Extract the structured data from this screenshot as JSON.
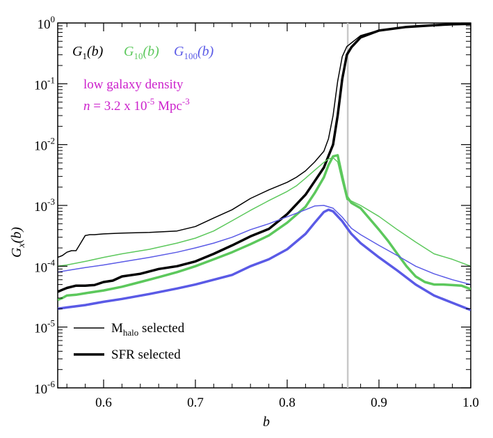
{
  "chart_data": {
    "type": "line",
    "xlabel_main": "b",
    "ylabel_main": "G",
    "ylabel_sub": "x",
    "ylabel_tail": "(b)",
    "xlim": [
      0.55,
      1.0
    ],
    "ylim": [
      1e-06,
      1
    ],
    "yscale": "log",
    "xticks": [
      "0.6",
      "0.7",
      "0.8",
      "0.9",
      "1.0"
    ],
    "yticks": [
      {
        "base": "10",
        "exp": "0",
        "value": 1
      },
      {
        "base": "10",
        "exp": "-1",
        "value": 0.1
      },
      {
        "base": "10",
        "exp": "-2",
        "value": 0.01
      },
      {
        "base": "10",
        "exp": "-3",
        "value": 0.001
      },
      {
        "base": "10",
        "exp": "-4",
        "value": 0.0001
      },
      {
        "base": "10",
        "exp": "-5",
        "value": 1e-05
      },
      {
        "base": "10",
        "exp": "-6",
        "value": 1e-06
      }
    ],
    "vline": {
      "x": 0.866,
      "color": "#c8c8c8"
    },
    "legend_top": [
      {
        "g": "G",
        "sub": "1",
        "arg": "(b)",
        "color": "#000000"
      },
      {
        "g": "G",
        "sub": "10",
        "arg": "(b)",
        "color": "#5cc85c"
      },
      {
        "g": "G",
        "sub": "100",
        "arg": "(b)",
        "color": "#5a5ae6"
      }
    ],
    "annotation": {
      "line1": "low galaxy density",
      "line2_n": "n",
      "line2_mid": " = 3.2 x 10",
      "line2_exp": "-5",
      "line2_unit": " Mpc",
      "line2_uexp": "-3",
      "color": "#cc22cc"
    },
    "legend_bottom": [
      {
        "pre": "M",
        "sub": "halo",
        "post": " selected",
        "width": "thin"
      },
      {
        "pre": "SFR selected",
        "sub": "",
        "post": "",
        "width": "thick"
      }
    ],
    "series": [
      {
        "key": "G1_mhalo",
        "color": "#000000",
        "width": 1.5,
        "x": [
          0.55,
          0.555,
          0.56,
          0.565,
          0.57,
          0.575,
          0.58,
          0.585,
          0.59,
          0.6,
          0.62,
          0.65,
          0.68,
          0.7,
          0.72,
          0.74,
          0.76,
          0.78,
          0.8,
          0.81,
          0.82,
          0.83,
          0.84,
          0.845,
          0.85,
          0.855,
          0.86,
          0.865,
          0.87,
          0.88,
          0.9,
          0.93,
          0.96,
          0.98,
          1.0
        ],
        "y": [
          0.00014,
          0.00015,
          0.00017,
          0.00018,
          0.00018,
          0.00024,
          0.00032,
          0.00033,
          0.00033,
          0.00034,
          0.00035,
          0.00036,
          0.00038,
          0.00045,
          0.00062,
          0.00085,
          0.0013,
          0.0018,
          0.0024,
          0.0029,
          0.0037,
          0.0052,
          0.0078,
          0.0125,
          0.03,
          0.11,
          0.28,
          0.41,
          0.47,
          0.62,
          0.76,
          0.86,
          0.92,
          0.95,
          0.97
        ]
      },
      {
        "key": "G1_sfr",
        "color": "#000000",
        "width": 3.5,
        "x": [
          0.55,
          0.555,
          0.56,
          0.57,
          0.58,
          0.59,
          0.6,
          0.61,
          0.62,
          0.64,
          0.66,
          0.68,
          0.7,
          0.72,
          0.74,
          0.76,
          0.78,
          0.8,
          0.82,
          0.83,
          0.84,
          0.845,
          0.85,
          0.855,
          0.86,
          0.865,
          0.87,
          0.88,
          0.9,
          0.93,
          0.96,
          0.98,
          1.0
        ],
        "y": [
          3.8e-05,
          4.1e-05,
          4.4e-05,
          4.8e-05,
          4.8e-05,
          4.9e-05,
          5.5e-05,
          5.8e-05,
          6.8e-05,
          7.5e-05,
          9e-05,
          0.0001,
          0.00012,
          0.00016,
          0.00022,
          0.00031,
          0.00041,
          0.00072,
          0.0015,
          0.0025,
          0.0042,
          0.0065,
          0.01,
          0.03,
          0.12,
          0.3,
          0.4,
          0.58,
          0.75,
          0.86,
          0.92,
          0.95,
          0.97
        ]
      },
      {
        "key": "G10_mhalo",
        "color": "#5cc85c",
        "width": 1.5,
        "x": [
          0.55,
          0.56,
          0.58,
          0.6,
          0.62,
          0.65,
          0.68,
          0.7,
          0.72,
          0.74,
          0.76,
          0.78,
          0.8,
          0.81,
          0.82,
          0.83,
          0.84,
          0.845,
          0.85,
          0.855,
          0.86,
          0.865,
          0.87,
          0.88,
          0.9,
          0.92,
          0.94,
          0.96,
          0.98,
          1.0
        ],
        "y": [
          0.0001,
          0.000105,
          0.00012,
          0.00014,
          0.00016,
          0.00019,
          0.00024,
          0.00029,
          0.00038,
          0.00056,
          0.00083,
          0.0012,
          0.0017,
          0.0021,
          0.0028,
          0.0038,
          0.0051,
          0.0058,
          0.0061,
          0.0052,
          0.0025,
          0.00125,
          0.00118,
          0.001,
          0.00066,
          0.0004,
          0.00025,
          0.00016,
          0.00013,
          0.0001
        ]
      },
      {
        "key": "G10_sfr",
        "color": "#5cc85c",
        "width": 3.5,
        "x": [
          0.55,
          0.555,
          0.56,
          0.57,
          0.58,
          0.6,
          0.62,
          0.64,
          0.66,
          0.68,
          0.7,
          0.72,
          0.74,
          0.76,
          0.78,
          0.8,
          0.82,
          0.83,
          0.84,
          0.845,
          0.85,
          0.855,
          0.86,
          0.865,
          0.87,
          0.88,
          0.89,
          0.9,
          0.91,
          0.92,
          0.93,
          0.94,
          0.95,
          0.96,
          0.97,
          0.98,
          0.99,
          1.0
        ],
        "y": [
          2.8e-05,
          3e-05,
          3.3e-05,
          3.4e-05,
          3.6e-05,
          4e-05,
          4.6e-05,
          5.5e-05,
          6.6e-05,
          8e-05,
          0.0001,
          0.00013,
          0.00017,
          0.00023,
          0.00032,
          0.00052,
          0.00095,
          0.0016,
          0.0029,
          0.0046,
          0.0064,
          0.0067,
          0.003,
          0.0014,
          0.0011,
          0.0009,
          0.0006,
          0.0004,
          0.00026,
          0.00016,
          0.0001,
          6.8e-05,
          5.5e-05,
          5e-05,
          5e-05,
          4.9e-05,
          4.8e-05,
          4.2e-05
        ]
      },
      {
        "key": "G100_mhalo",
        "color": "#5a5ae6",
        "width": 1.5,
        "x": [
          0.55,
          0.56,
          0.58,
          0.6,
          0.62,
          0.65,
          0.68,
          0.7,
          0.72,
          0.74,
          0.76,
          0.78,
          0.8,
          0.82,
          0.83,
          0.84,
          0.85,
          0.86,
          0.865,
          0.87,
          0.88,
          0.9,
          0.92,
          0.94,
          0.96,
          0.98,
          1.0
        ],
        "y": [
          8e-05,
          8.5e-05,
          9.5e-05,
          0.000105,
          0.000118,
          0.00014,
          0.00017,
          0.0002,
          0.00024,
          0.0003,
          0.0004,
          0.0005,
          0.00065,
          0.00085,
          0.00098,
          0.001,
          0.0009,
          0.00064,
          0.00052,
          0.00042,
          0.00033,
          0.00022,
          0.00015,
          0.0001,
          7.5e-05,
          6e-05,
          5e-05
        ]
      },
      {
        "key": "G100_sfr",
        "color": "#5a5ae6",
        "width": 3.5,
        "x": [
          0.55,
          0.56,
          0.58,
          0.6,
          0.62,
          0.65,
          0.68,
          0.7,
          0.72,
          0.74,
          0.76,
          0.78,
          0.8,
          0.82,
          0.83,
          0.84,
          0.845,
          0.85,
          0.86,
          0.865,
          0.87,
          0.88,
          0.9,
          0.92,
          0.94,
          0.96,
          0.98,
          1.0
        ],
        "y": [
          2e-05,
          2.1e-05,
          2.3e-05,
          2.6e-05,
          2.9e-05,
          3.5e-05,
          4.3e-05,
          5e-05,
          6e-05,
          7.2e-05,
          0.0001,
          0.00013,
          0.00019,
          0.00034,
          0.00052,
          0.00078,
          0.00085,
          0.0008,
          0.00055,
          0.00043,
          0.00034,
          0.00024,
          0.00014,
          8.5e-05,
          5e-05,
          3.3e-05,
          2.5e-05,
          1.9e-05
        ]
      }
    ]
  }
}
